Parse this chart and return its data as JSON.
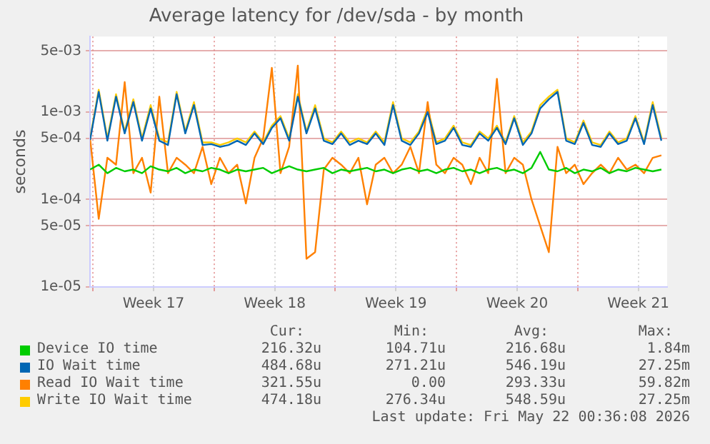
{
  "chart_data": {
    "type": "line",
    "title": "Average latency for /dev/sda - by month",
    "ylabel": "seconds",
    "x": [
      "2026-04-19T20:00",
      "2026-04-20T08:00",
      "2026-04-20T20:00",
      "2026-04-21T08:00",
      "2026-04-21T20:00",
      "2026-04-22T08:00",
      "2026-04-22T20:00",
      "2026-04-23T08:00",
      "2026-04-23T20:00",
      "2026-04-24T08:00",
      "2026-04-24T20:00",
      "2026-04-25T08:00",
      "2026-04-25T20:00",
      "2026-04-26T08:00",
      "2026-04-26T20:00",
      "2026-04-27T08:00",
      "2026-04-27T20:00",
      "2026-04-28T08:00",
      "2026-04-28T20:00",
      "2026-04-29T08:00",
      "2026-04-29T20:00",
      "2026-04-30T08:00",
      "2026-04-30T20:00",
      "2026-05-01T08:00",
      "2026-05-01T20:00",
      "2026-05-02T08:00",
      "2026-05-02T20:00",
      "2026-05-03T08:00",
      "2026-05-03T20:00",
      "2026-05-04T08:00",
      "2026-05-04T20:00",
      "2026-05-05T08:00",
      "2026-05-05T20:00",
      "2026-05-06T08:00",
      "2026-05-06T20:00",
      "2026-05-07T08:00",
      "2026-05-07T20:00",
      "2026-05-08T08:00",
      "2026-05-08T20:00",
      "2026-05-09T08:00",
      "2026-05-09T20:00",
      "2026-05-10T08:00",
      "2026-05-10T20:00",
      "2026-05-11T08:00",
      "2026-05-11T20:00",
      "2026-05-12T08:00",
      "2026-05-12T20:00",
      "2026-05-13T08:00",
      "2026-05-13T20:00",
      "2026-05-14T08:00",
      "2026-05-14T20:00",
      "2026-05-15T08:00",
      "2026-05-15T20:00",
      "2026-05-16T08:00",
      "2026-05-16T20:00",
      "2026-05-17T08:00",
      "2026-05-17T20:00",
      "2026-05-18T08:00",
      "2026-05-18T20:00",
      "2026-05-19T08:00",
      "2026-05-19T20:00",
      "2026-05-20T08:00",
      "2026-05-20T20:00",
      "2026-05-21T08:00",
      "2026-05-21T20:00",
      "2026-05-22T08:00",
      "2026-05-22T20:00"
    ],
    "series": [
      {
        "name": "Device IO time",
        "color": "#00cc00",
        "values": [
          0.00022,
          0.00025,
          0.0002,
          0.00023,
          0.00021,
          0.00022,
          0.0002,
          0.00024,
          0.00022,
          0.00021,
          0.00023,
          0.0002,
          0.00022,
          0.00021,
          0.00023,
          0.00022,
          0.0002,
          0.00022,
          0.00021,
          0.00022,
          0.00023,
          0.0002,
          0.00022,
          0.00024,
          0.00022,
          0.00021,
          0.00022,
          0.00023,
          0.0002,
          0.00022,
          0.00021,
          0.00022,
          0.00023,
          0.00021,
          0.00022,
          0.0002,
          0.00022,
          0.00023,
          0.00021,
          0.00022,
          0.0002,
          0.00022,
          0.00023,
          0.00021,
          0.00022,
          0.0002,
          0.00022,
          0.00023,
          0.00021,
          0.00022,
          0.0002,
          0.00023,
          0.00035,
          0.00022,
          0.00021,
          0.00023,
          0.0002,
          0.00022,
          0.00021,
          0.00023,
          0.0002,
          0.00022,
          0.00021,
          0.00023,
          0.00022,
          0.00021,
          0.00022
        ]
      },
      {
        "name": "IO Wait time",
        "color": "#0066b3",
        "values": [
          0.00048,
          0.0017,
          0.00047,
          0.0015,
          0.00057,
          0.0013,
          0.00047,
          0.0011,
          0.00047,
          0.00042,
          0.0016,
          0.00057,
          0.0012,
          0.00042,
          0.00043,
          0.0004,
          0.00042,
          0.00047,
          0.00042,
          0.00057,
          0.00043,
          0.00066,
          0.00085,
          0.00047,
          0.0015,
          0.00057,
          0.0011,
          0.00047,
          0.00043,
          0.00057,
          0.00042,
          0.00047,
          0.00043,
          0.00057,
          0.00042,
          0.0012,
          0.00047,
          0.00042,
          0.00057,
          0.001,
          0.00043,
          0.00047,
          0.00066,
          0.00042,
          0.0004,
          0.00057,
          0.00047,
          0.00066,
          0.00043,
          0.00085,
          0.00042,
          0.00057,
          0.0011,
          0.0014,
          0.0017,
          0.00047,
          0.00043,
          0.00075,
          0.00042,
          0.0004,
          0.00057,
          0.00043,
          0.00047,
          0.00085,
          0.00043,
          0.0012,
          0.00047
        ]
      },
      {
        "name": "Read IO Wait time",
        "color": "#ff8000",
        "values": [
          0.0005,
          6e-05,
          0.0003,
          0.00025,
          0.0022,
          0.0002,
          0.0003,
          0.00012,
          0.0015,
          0.0002,
          0.0003,
          0.00025,
          0.0002,
          0.0004,
          0.00015,
          0.0003,
          0.0002,
          0.00025,
          9e-05,
          0.0003,
          0.0005,
          0.0032,
          0.0002,
          0.0004,
          0.0034,
          2.1e-05,
          2.5e-05,
          0.00022,
          0.0003,
          0.00025,
          0.0002,
          0.0003,
          8.8e-05,
          0.00025,
          0.0003,
          0.0002,
          0.00025,
          0.0004,
          0.0002,
          0.0013,
          0.00025,
          0.0002,
          0.0003,
          0.00025,
          0.00015,
          0.0003,
          0.0002,
          0.0024,
          0.0002,
          0.0003,
          0.00025,
          0.0001,
          5e-05,
          2.5e-05,
          0.0004,
          0.0002,
          0.00025,
          0.00015,
          0.0002,
          0.00025,
          0.0002,
          0.0003,
          0.00022,
          0.00025,
          0.0002,
          0.0003,
          0.00032
        ]
      },
      {
        "name": "Write IO Wait time",
        "color": "#ffcc00",
        "values": [
          0.0005,
          0.0018,
          0.0005,
          0.0016,
          0.0006,
          0.0014,
          0.0005,
          0.0012,
          0.0005,
          0.00045,
          0.0017,
          0.0006,
          0.0013,
          0.00045,
          0.00045,
          0.00042,
          0.00045,
          0.0005,
          0.00045,
          0.0006,
          0.00045,
          0.0007,
          0.0009,
          0.0005,
          0.0016,
          0.0006,
          0.0012,
          0.0005,
          0.00045,
          0.0006,
          0.00045,
          0.0005,
          0.00045,
          0.0006,
          0.00045,
          0.0013,
          0.0005,
          0.00045,
          0.0006,
          0.0011,
          0.00045,
          0.0005,
          0.0007,
          0.00045,
          0.00042,
          0.0006,
          0.0005,
          0.0007,
          0.00045,
          0.0009,
          0.00045,
          0.0006,
          0.0012,
          0.0015,
          0.0018,
          0.0005,
          0.00045,
          0.0008,
          0.00045,
          0.00042,
          0.0006,
          0.00045,
          0.0005,
          0.0009,
          0.00045,
          0.0013,
          0.0005
        ]
      }
    ],
    "log": true,
    "ylim": [
      1e-05,
      0.0073
    ],
    "yticks": [
      {
        "value": 1e-05,
        "label": "1e-05"
      },
      {
        "value": 5e-05,
        "label": "5e-05"
      },
      {
        "value": 0.0001,
        "label": "1e-04"
      },
      {
        "value": 0.0005,
        "label": "5e-04"
      },
      {
        "value": 0.001,
        "label": "1e-03"
      },
      {
        "value": 0.005,
        "label": "5e-03"
      }
    ],
    "xlim": [
      "2026-04-19T20:00",
      "2026-05-23T04:00"
    ],
    "xticks": [
      {
        "value": "2026-04-20T00:00",
        "label": null
      },
      {
        "value": "2026-04-23T12:00",
        "label": "Week 17"
      },
      {
        "value": "2026-04-27T00:00",
        "label": null
      },
      {
        "value": "2026-04-30T12:00",
        "label": "Week 18"
      },
      {
        "value": "2026-05-04T00:00",
        "label": null
      },
      {
        "value": "2026-05-07T12:00",
        "label": "Week 19"
      },
      {
        "value": "2026-05-11T00:00",
        "label": null
      },
      {
        "value": "2026-05-14T12:00",
        "label": "Week 20"
      },
      {
        "value": "2026-05-18T00:00",
        "label": null
      },
      {
        "value": "2026-05-21T12:00",
        "label": "Week 21"
      }
    ],
    "grid": true,
    "legend": "bottom",
    "marker": "none",
    "line_style": "solid",
    "annotations": [
      "Cur:",
      "Min:",
      "Avg:",
      "Max:",
      "216.32u",
      "104.71u",
      "216.68u",
      "1.84m",
      "484.68u",
      "271.21u",
      "546.19u",
      "27.25m",
      "321.55u",
      "0.00",
      "293.33u",
      "59.82m",
      "474.18u",
      "276.34u",
      "548.59u",
      "27.25m",
      "Last update: Fri May 22 00:36:08 2026"
    ]
  }
}
